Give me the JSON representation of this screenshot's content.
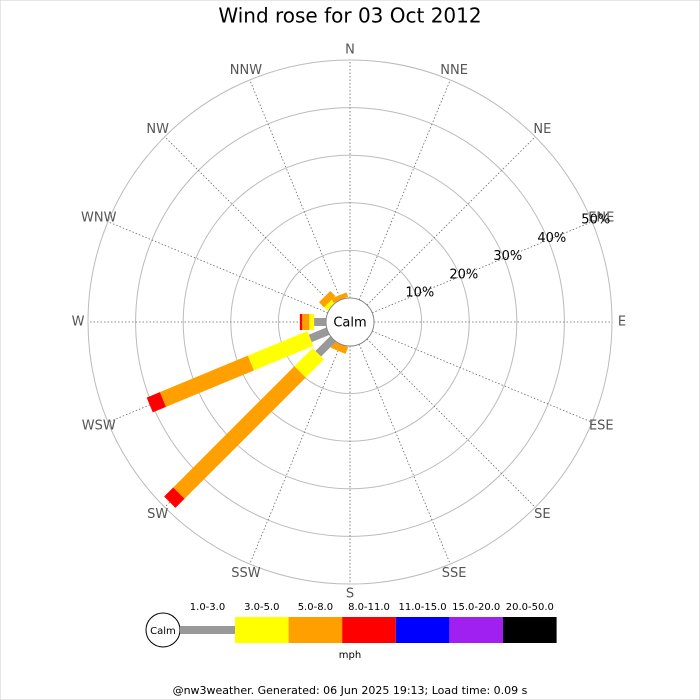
{
  "chart_data": {
    "type": "windrose",
    "title": "Wind rose for 03 Oct 2012",
    "calm_label": "Calm",
    "categories": [
      "N",
      "NNE",
      "NE",
      "ENE",
      "E",
      "ESE",
      "SE",
      "SSE",
      "S",
      "SSW",
      "SW",
      "WSW",
      "W",
      "WNW",
      "NW",
      "NNW"
    ],
    "rlim": [
      0,
      50
    ],
    "rticks": [
      {
        "value": 10,
        "label": "10%"
      },
      {
        "value": 20,
        "label": "20%"
      },
      {
        "value": 30,
        "label": "30%"
      },
      {
        "value": 40,
        "label": "40%"
      },
      {
        "value": 50,
        "label": "50%"
      }
    ],
    "series": [
      {
        "name": "1.0-3.0",
        "color": "#999999",
        "values": [
          0,
          0,
          0,
          0,
          0,
          0,
          0,
          0,
          0,
          0,
          4.4,
          4,
          2.5,
          0,
          0,
          0
        ]
      },
      {
        "name": "3.0-5.0",
        "color": "#ffff00",
        "values": [
          0,
          0,
          0,
          0,
          0,
          0,
          0,
          0,
          0,
          0,
          5.4,
          13.5,
          1,
          0,
          1,
          0
        ]
      },
      {
        "name": "5.0-8.0",
        "color": "#ffa000",
        "values": [
          0,
          0,
          0,
          0,
          0,
          0,
          0,
          0,
          0,
          1.5,
          36,
          20,
          1.5,
          0,
          1.5,
          1
        ]
      },
      {
        "name": "8.0-11.0",
        "color": "#ff0000",
        "values": [
          0,
          0,
          0,
          0,
          0,
          0,
          0,
          0,
          0,
          0,
          2.7,
          3,
          0.5,
          0,
          0,
          0
        ]
      },
      {
        "name": "11.0-15.0",
        "color": "#0000ff",
        "values": [
          0,
          0,
          0,
          0,
          0,
          0,
          0,
          0,
          0,
          0,
          0,
          0,
          0,
          0,
          0,
          0
        ]
      },
      {
        "name": "15.0-20.0",
        "color": "#a020f0",
        "values": [
          0,
          0,
          0,
          0,
          0,
          0,
          0,
          0,
          0,
          0,
          0,
          0,
          0,
          0,
          0,
          0
        ]
      },
      {
        "name": "20.0-50.0",
        "color": "#000000",
        "values": [
          0,
          0,
          0,
          0,
          0,
          0,
          0,
          0,
          0,
          0,
          0,
          0,
          0,
          0,
          0,
          0
        ]
      }
    ],
    "unit_label": "mph",
    "footer": "@nw3weather. Generated: 06 Jun 2025 19:13; Load time: 0.09 s"
  }
}
